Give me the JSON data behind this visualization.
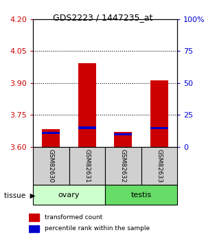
{
  "title": "GDS2223 / 1447235_at",
  "samples": [
    "GSM82630",
    "GSM82631",
    "GSM82632",
    "GSM82633"
  ],
  "bar_bottom": 3.6,
  "red_tops": [
    3.685,
    3.993,
    3.672,
    3.912
  ],
  "blue_tops": [
    3.672,
    3.695,
    3.663,
    3.692
  ],
  "blue_bottoms": [
    3.662,
    3.685,
    3.654,
    3.682
  ],
  "ylim_left": [
    3.6,
    4.2
  ],
  "ylim_right": [
    0,
    100
  ],
  "left_ticks": [
    3.6,
    3.75,
    3.9,
    4.05,
    4.2
  ],
  "right_ticks": [
    0,
    25,
    50,
    75,
    100
  ],
  "right_tick_labels": [
    "0",
    "25",
    "50",
    "75",
    "100%"
  ],
  "dotted_lines": [
    4.05,
    3.9,
    3.75
  ],
  "left_tick_color": "#cc0000",
  "right_tick_color": "#0000cc",
  "bar_width": 0.5,
  "red_color": "#cc0000",
  "blue_color": "#0000cc",
  "legend_red": "transformed count",
  "legend_blue": "percentile rank within the sample",
  "group_ranges": [
    [
      -0.5,
      1.5,
      "ovary",
      "#ccffcc"
    ],
    [
      1.5,
      3.5,
      "testis",
      "#66dd66"
    ]
  ],
  "sample_box_color": "#d0d0d0"
}
